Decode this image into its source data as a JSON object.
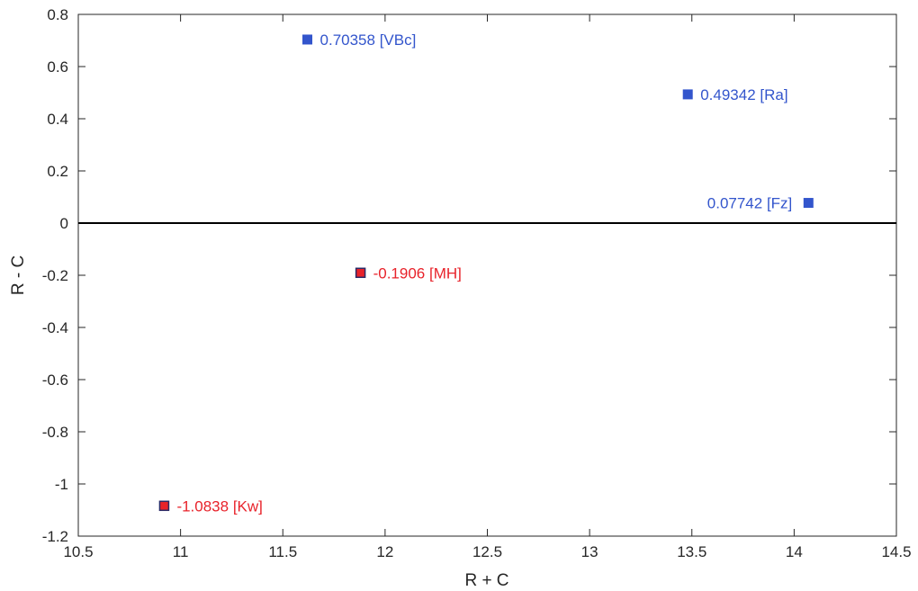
{
  "chart_data": {
    "type": "scatter",
    "title": "",
    "xlabel": "R + C",
    "ylabel": "R - C",
    "xlim": [
      10.5,
      14.5
    ],
    "ylim": [
      -1.2,
      0.8
    ],
    "x_ticks": [
      "10.5",
      "11",
      "11.5",
      "12",
      "12.5",
      "13",
      "13.5",
      "14",
      "14.5"
    ],
    "y_ticks": [
      "-1.2",
      "-1",
      "-0.8",
      "-0.6",
      "-0.4",
      "-0.2",
      "0",
      "0.2",
      "0.4",
      "0.6",
      "0.8"
    ],
    "grid": false,
    "zero_line": true,
    "points": [
      {
        "x": 11.62,
        "y": 0.70358,
        "label": "0.70358 [VBc]",
        "color": "#3355cc",
        "label_side": "right"
      },
      {
        "x": 13.48,
        "y": 0.49342,
        "label": "0.49342 [Ra]",
        "color": "#3355cc",
        "label_side": "right"
      },
      {
        "x": 14.07,
        "y": 0.07742,
        "label": "0.07742 [Fz]",
        "color": "#3355cc",
        "label_side": "left"
      },
      {
        "x": 11.88,
        "y": -0.1906,
        "label": "-0.1906 [MH]",
        "color": "#e8222a",
        "label_side": "right"
      },
      {
        "x": 10.92,
        "y": -1.0838,
        "label": "-1.0838 [Kw]",
        "color": "#e8222a",
        "label_side": "right"
      }
    ],
    "colors": {
      "positive": "#3355cc",
      "negative": "#e8222a",
      "negative_marker_edge": "#2a2a66"
    }
  }
}
